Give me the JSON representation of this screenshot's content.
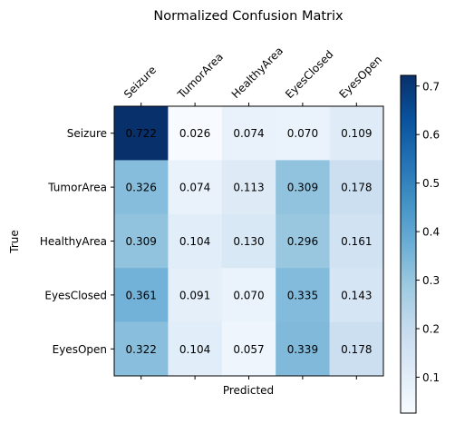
{
  "chart_data": {
    "type": "heatmap",
    "title": "Normalized Confusion Matrix",
    "xlabel": "Predicted",
    "ylabel": "True",
    "x_categories": [
      "Seizure",
      "TumorArea",
      "HealthyArea",
      "EyesClosed",
      "EyesOpen"
    ],
    "y_categories": [
      "Seizure",
      "TumorArea",
      "HealthyArea",
      "EyesClosed",
      "EyesOpen"
    ],
    "values": [
      [
        0.722,
        0.026,
        0.074,
        0.07,
        0.109
      ],
      [
        0.326,
        0.074,
        0.113,
        0.309,
        0.178
      ],
      [
        0.309,
        0.104,
        0.13,
        0.296,
        0.161
      ],
      [
        0.361,
        0.091,
        0.07,
        0.335,
        0.143
      ],
      [
        0.322,
        0.104,
        0.057,
        0.339,
        0.178
      ]
    ],
    "cell_labels": [
      [
        "0.722",
        "0.026",
        "0.074",
        "0.070",
        "0.109"
      ],
      [
        "0.326",
        "0.074",
        "0.113",
        "0.309",
        "0.178"
      ],
      [
        "0.309",
        "0.104",
        "0.130",
        "0.296",
        "0.161"
      ],
      [
        "0.361",
        "0.091",
        "0.070",
        "0.335",
        "0.143"
      ],
      [
        "0.322",
        "0.104",
        "0.057",
        "0.339",
        "0.178"
      ]
    ],
    "colormap": "Blues",
    "colorbar": {
      "range": [
        0.026,
        0.722
      ],
      "ticks": [
        0.1,
        0.2,
        0.3,
        0.4,
        0.5,
        0.6,
        0.7
      ],
      "tick_labels": [
        "0.1",
        "0.2",
        "0.3",
        "0.4",
        "0.5",
        "0.6",
        "0.7"
      ]
    },
    "grid": false
  }
}
